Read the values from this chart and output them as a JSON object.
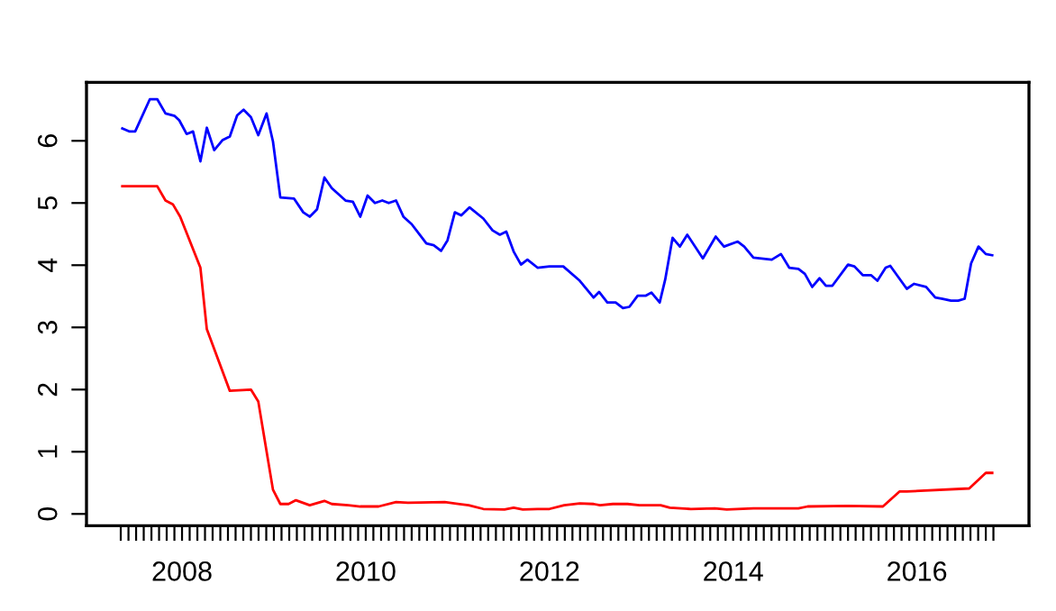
{
  "chart_data": {
    "type": "line",
    "xlim": [
      2006.96,
      2017.22
    ],
    "ylim": [
      -0.19,
      6.94
    ],
    "yticks": [
      0,
      1,
      2,
      3,
      4,
      5,
      6
    ],
    "xticks": [
      {
        "value": 2007.333,
        "label": null
      },
      {
        "value": 2007.417,
        "label": null
      },
      {
        "value": 2007.5,
        "label": null
      },
      {
        "value": 2007.583,
        "label": null
      },
      {
        "value": 2007.667,
        "label": null
      },
      {
        "value": 2007.75,
        "label": null
      },
      {
        "value": 2007.833,
        "label": null
      },
      {
        "value": 2007.917,
        "label": null
      },
      2008,
      {
        "value": 2008.083,
        "label": null
      },
      {
        "value": 2008.167,
        "label": null
      },
      {
        "value": 2008.25,
        "label": null
      },
      {
        "value": 2008.333,
        "label": null
      },
      {
        "value": 2008.417,
        "label": null
      },
      {
        "value": 2008.5,
        "label": null
      },
      {
        "value": 2008.583,
        "label": null
      },
      {
        "value": 2008.667,
        "label": null
      },
      {
        "value": 2008.75,
        "label": null
      },
      {
        "value": 2008.833,
        "label": null
      },
      {
        "value": 2008.917,
        "label": null
      },
      {
        "value": 2009,
        "label": null
      },
      {
        "value": 2009.083,
        "label": null
      },
      {
        "value": 2009.167,
        "label": null
      },
      {
        "value": 2009.25,
        "label": null
      },
      {
        "value": 2009.333,
        "label": null
      },
      {
        "value": 2009.417,
        "label": null
      },
      {
        "value": 2009.5,
        "label": null
      },
      {
        "value": 2009.583,
        "label": null
      },
      {
        "value": 2009.667,
        "label": null
      },
      {
        "value": 2009.75,
        "label": null
      },
      {
        "value": 2009.833,
        "label": null
      },
      {
        "value": 2009.917,
        "label": null
      },
      2010,
      {
        "value": 2010.083,
        "label": null
      },
      {
        "value": 2010.167,
        "label": null
      },
      {
        "value": 2010.25,
        "label": null
      },
      {
        "value": 2010.333,
        "label": null
      },
      {
        "value": 2010.417,
        "label": null
      },
      {
        "value": 2010.5,
        "label": null
      },
      {
        "value": 2010.583,
        "label": null
      },
      {
        "value": 2010.667,
        "label": null
      },
      {
        "value": 2010.75,
        "label": null
      },
      {
        "value": 2010.833,
        "label": null
      },
      {
        "value": 2010.917,
        "label": null
      },
      {
        "value": 2011,
        "label": null
      },
      {
        "value": 2011.083,
        "label": null
      },
      {
        "value": 2011.167,
        "label": null
      },
      {
        "value": 2011.25,
        "label": null
      },
      {
        "value": 2011.333,
        "label": null
      },
      {
        "value": 2011.417,
        "label": null
      },
      {
        "value": 2011.5,
        "label": null
      },
      {
        "value": 2011.583,
        "label": null
      },
      {
        "value": 2011.667,
        "label": null
      },
      {
        "value": 2011.75,
        "label": null
      },
      {
        "value": 2011.833,
        "label": null
      },
      {
        "value": 2011.917,
        "label": null
      },
      2012,
      {
        "value": 2012.083,
        "label": null
      },
      {
        "value": 2012.167,
        "label": null
      },
      {
        "value": 2012.25,
        "label": null
      },
      {
        "value": 2012.333,
        "label": null
      },
      {
        "value": 2012.417,
        "label": null
      },
      {
        "value": 2012.5,
        "label": null
      },
      {
        "value": 2012.583,
        "label": null
      },
      {
        "value": 2012.667,
        "label": null
      },
      {
        "value": 2012.75,
        "label": null
      },
      {
        "value": 2012.833,
        "label": null
      },
      {
        "value": 2012.917,
        "label": null
      },
      {
        "value": 2013,
        "label": null
      },
      {
        "value": 2013.083,
        "label": null
      },
      {
        "value": 2013.167,
        "label": null
      },
      {
        "value": 2013.25,
        "label": null
      },
      {
        "value": 2013.333,
        "label": null
      },
      {
        "value": 2013.417,
        "label": null
      },
      {
        "value": 2013.5,
        "label": null
      },
      {
        "value": 2013.583,
        "label": null
      },
      {
        "value": 2013.667,
        "label": null
      },
      {
        "value": 2013.75,
        "label": null
      },
      {
        "value": 2013.833,
        "label": null
      },
      {
        "value": 2013.917,
        "label": null
      },
      2014,
      {
        "value": 2014.083,
        "label": null
      },
      {
        "value": 2014.167,
        "label": null
      },
      {
        "value": 2014.25,
        "label": null
      },
      {
        "value": 2014.333,
        "label": null
      },
      {
        "value": 2014.417,
        "label": null
      },
      {
        "value": 2014.5,
        "label": null
      },
      {
        "value": 2014.583,
        "label": null
      },
      {
        "value": 2014.667,
        "label": null
      },
      {
        "value": 2014.75,
        "label": null
      },
      {
        "value": 2014.833,
        "label": null
      },
      {
        "value": 2014.917,
        "label": null
      },
      {
        "value": 2015,
        "label": null
      },
      {
        "value": 2015.083,
        "label": null
      },
      {
        "value": 2015.167,
        "label": null
      },
      {
        "value": 2015.25,
        "label": null
      },
      {
        "value": 2015.333,
        "label": null
      },
      {
        "value": 2015.417,
        "label": null
      },
      {
        "value": 2015.5,
        "label": null
      },
      {
        "value": 2015.583,
        "label": null
      },
      {
        "value": 2015.667,
        "label": null
      },
      {
        "value": 2015.75,
        "label": null
      },
      {
        "value": 2015.833,
        "label": null
      },
      {
        "value": 2015.917,
        "label": null
      },
      2016,
      {
        "value": 2016.083,
        "label": null
      },
      {
        "value": 2016.167,
        "label": null
      },
      {
        "value": 2016.25,
        "label": null
      },
      {
        "value": 2016.333,
        "label": null
      },
      {
        "value": 2016.417,
        "label": null
      },
      {
        "value": 2016.5,
        "label": null
      },
      {
        "value": 2016.583,
        "label": null
      },
      {
        "value": 2016.667,
        "label": null
      },
      {
        "value": 2016.75,
        "label": null
      },
      {
        "value": 2016.833,
        "label": null
      }
    ],
    "series": [
      {
        "color": "#0000ff",
        "x": [
          2007.35,
          2007.43,
          2007.49,
          2007.65,
          2007.73,
          2007.82,
          2007.92,
          2007.97,
          2008.05,
          2008.12,
          2008.2,
          2008.27,
          2008.35,
          2008.44,
          2008.52,
          2008.6,
          2008.67,
          2008.75,
          2008.83,
          2008.92,
          2008.99,
          2009.07,
          2009.22,
          2009.32,
          2009.39,
          2009.47,
          2009.55,
          2009.63,
          2009.78,
          2009.86,
          2009.94,
          2010.02,
          2010.1,
          2010.18,
          2010.25,
          2010.33,
          2010.41,
          2010.5,
          2010.66,
          2010.74,
          2010.82,
          2010.89,
          2010.97,
          2011.04,
          2011.13,
          2011.28,
          2011.38,
          2011.46,
          2011.53,
          2011.61,
          2011.69,
          2011.76,
          2011.87,
          2012.0,
          2012.15,
          2012.33,
          2012.48,
          2012.54,
          2012.63,
          2012.72,
          2012.8,
          2012.87,
          2012.96,
          2013.05,
          2013.11,
          2013.2,
          2013.26,
          2013.34,
          2013.42,
          2013.5,
          2013.67,
          2013.81,
          2013.9,
          2014.05,
          2014.12,
          2014.22,
          2014.42,
          2014.52,
          2014.61,
          2014.71,
          2014.78,
          2014.86,
          2014.94,
          2015.01,
          2015.08,
          2015.25,
          2015.32,
          2015.41,
          2015.5,
          2015.57,
          2015.66,
          2015.71,
          2015.89,
          2015.97,
          2016.1,
          2016.2,
          2016.28,
          2016.37,
          2016.45,
          2016.52,
          2016.59,
          2016.67,
          2016.75,
          2016.82
        ],
        "values": [
          6.2,
          6.15,
          6.15,
          6.67,
          6.67,
          6.44,
          6.4,
          6.33,
          6.11,
          6.15,
          5.67,
          6.21,
          5.85,
          6.01,
          6.07,
          6.41,
          6.5,
          6.38,
          6.09,
          6.44,
          5.99,
          5.09,
          5.07,
          4.85,
          4.78,
          4.9,
          5.41,
          5.24,
          5.04,
          5.02,
          4.78,
          5.12,
          5.0,
          5.04,
          5.0,
          5.04,
          4.78,
          4.66,
          4.35,
          4.32,
          4.23,
          4.4,
          4.85,
          4.8,
          4.93,
          4.75,
          4.56,
          4.49,
          4.54,
          4.22,
          4.01,
          4.09,
          3.96,
          3.98,
          3.98,
          3.75,
          3.48,
          3.57,
          3.4,
          3.4,
          3.31,
          3.33,
          3.51,
          3.51,
          3.56,
          3.4,
          3.77,
          4.44,
          4.3,
          4.49,
          4.11,
          4.46,
          4.3,
          4.38,
          4.3,
          4.12,
          4.09,
          4.18,
          3.96,
          3.94,
          3.86,
          3.65,
          3.79,
          3.67,
          3.67,
          4.01,
          3.98,
          3.84,
          3.84,
          3.75,
          3.96,
          3.99,
          3.62,
          3.7,
          3.65,
          3.48,
          3.46,
          3.43,
          3.43,
          3.46,
          4.03,
          4.3,
          4.18,
          4.16
        ]
      },
      {
        "color": "#ff0000",
        "x": [
          2007.35,
          2007.73,
          2007.82,
          2007.9,
          2007.98,
          2008.2,
          2008.27,
          2008.52,
          2008.75,
          2008.83,
          2008.93,
          2008.99,
          2009.07,
          2009.16,
          2009.24,
          2009.39,
          2009.55,
          2009.63,
          2009.81,
          2009.94,
          2010.14,
          2010.33,
          2010.46,
          2010.86,
          2011.12,
          2011.28,
          2011.51,
          2011.61,
          2011.71,
          2011.87,
          2012.0,
          2012.16,
          2012.33,
          2012.48,
          2012.55,
          2012.69,
          2012.85,
          2012.98,
          2013.21,
          2013.31,
          2013.54,
          2013.8,
          2013.93,
          2014.22,
          2014.71,
          2014.81,
          2015.24,
          2015.63,
          2015.81,
          2015.89,
          2016.57,
          2016.75,
          2016.82
        ],
        "values": [
          5.27,
          5.27,
          5.04,
          4.98,
          4.78,
          3.96,
          2.97,
          1.98,
          2.0,
          1.81,
          0.92,
          0.39,
          0.16,
          0.16,
          0.22,
          0.14,
          0.21,
          0.16,
          0.14,
          0.12,
          0.12,
          0.19,
          0.18,
          0.19,
          0.14,
          0.08,
          0.07,
          0.1,
          0.07,
          0.08,
          0.08,
          0.14,
          0.17,
          0.16,
          0.14,
          0.16,
          0.16,
          0.14,
          0.14,
          0.1,
          0.08,
          0.09,
          0.07,
          0.09,
          0.09,
          0.12,
          0.13,
          0.12,
          0.36,
          0.36,
          0.41,
          0.66,
          0.66
        ]
      }
    ]
  }
}
